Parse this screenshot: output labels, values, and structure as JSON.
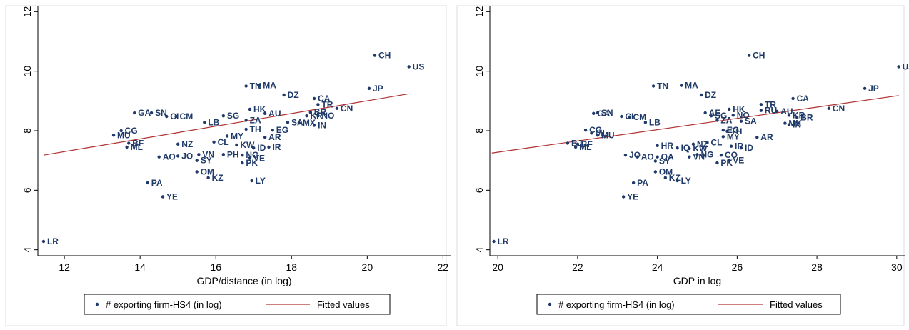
{
  "chart_data": [
    {
      "type": "scatter",
      "xlabel": "GDP/distance (in log)",
      "ylabel": "",
      "xlim": [
        11.3,
        22.2
      ],
      "ylim": [
        3.8,
        12.2
      ],
      "xticks": [
        "12",
        "14",
        "16",
        "18",
        "20",
        "22"
      ],
      "yticks": [
        "4",
        "6",
        "8",
        "10",
        "12"
      ],
      "fit": [
        [
          11.45,
          7.18
        ],
        [
          21.1,
          9.24
        ]
      ],
      "legend": [
        "# exporting firm-HS4 (in log)",
        "Fitted values"
      ],
      "fit_color": "#b03030",
      "marker_color": "#1f3a68",
      "points": [
        {
          "label": "LR",
          "x": 11.45,
          "y": 4.28
        },
        {
          "label": "CH",
          "x": 20.2,
          "y": 10.53
        },
        {
          "label": "US",
          "x": 21.1,
          "y": 10.15
        },
        {
          "label": "JP",
          "x": 20.05,
          "y": 9.42
        },
        {
          "label": "TN",
          "x": 16.8,
          "y": 9.5
        },
        {
          "label": "MA",
          "x": 17.15,
          "y": 9.52
        },
        {
          "label": "DZ",
          "x": 17.8,
          "y": 9.2
        },
        {
          "label": "CA",
          "x": 18.6,
          "y": 9.08
        },
        {
          "label": "TR",
          "x": 18.7,
          "y": 8.88
        },
        {
          "label": "CN",
          "x": 19.2,
          "y": 8.75
        },
        {
          "label": "HK",
          "x": 16.9,
          "y": 8.72
        },
        {
          "label": "AU",
          "x": 17.3,
          "y": 8.58
        },
        {
          "label": "SG",
          "x": 16.2,
          "y": 8.5
        },
        {
          "label": "ZA",
          "x": 16.8,
          "y": 8.35
        },
        {
          "label": "KR",
          "x": 18.4,
          "y": 8.5
        },
        {
          "label": "BR",
          "x": 18.5,
          "y": 8.62
        },
        {
          "label": "NO",
          "x": 18.7,
          "y": 8.5
        },
        {
          "label": "SA",
          "x": 17.9,
          "y": 8.28
        },
        {
          "label": "MX",
          "x": 18.2,
          "y": 8.26
        },
        {
          "label": "IN",
          "x": 18.6,
          "y": 8.18
        },
        {
          "label": "LB",
          "x": 15.7,
          "y": 8.28
        },
        {
          "label": "TH",
          "x": 16.8,
          "y": 8.05
        },
        {
          "label": "EG",
          "x": 17.5,
          "y": 8.02
        },
        {
          "label": "MY",
          "x": 16.3,
          "y": 7.82
        },
        {
          "label": "AR",
          "x": 17.3,
          "y": 7.78
        },
        {
          "label": "CL",
          "x": 15.95,
          "y": 7.62
        },
        {
          "label": "KW",
          "x": 16.55,
          "y": 7.52
        },
        {
          "label": "ID",
          "x": 17.0,
          "y": 7.42
        },
        {
          "label": "IR",
          "x": 17.4,
          "y": 7.45
        },
        {
          "label": "NZ",
          "x": 15.0,
          "y": 7.55
        },
        {
          "label": "VN",
          "x": 15.55,
          "y": 7.2
        },
        {
          "label": "PH",
          "x": 16.2,
          "y": 7.2
        },
        {
          "label": "NG",
          "x": 16.7,
          "y": 7.18
        },
        {
          "label": "VE",
          "x": 16.9,
          "y": 7.08
        },
        {
          "label": "PK",
          "x": 16.7,
          "y": 6.92
        },
        {
          "label": "SY",
          "x": 15.5,
          "y": 7.0
        },
        {
          "label": "AO",
          "x": 14.5,
          "y": 7.12
        },
        {
          "label": "JO",
          "x": 15.0,
          "y": 7.15
        },
        {
          "label": "OM",
          "x": 15.5,
          "y": 6.62
        },
        {
          "label": "KZ",
          "x": 15.8,
          "y": 6.42
        },
        {
          "label": "LY",
          "x": 16.95,
          "y": 6.32
        },
        {
          "label": "PA",
          "x": 14.2,
          "y": 6.25
        },
        {
          "label": "YE",
          "x": 14.6,
          "y": 5.78
        },
        {
          "label": "GA",
          "x": 13.85,
          "y": 8.6
        },
        {
          "label": "SN",
          "x": 14.3,
          "y": 8.6
        },
        {
          "label": "CI",
          "x": 14.7,
          "y": 8.48
        },
        {
          "label": "CM",
          "x": 14.95,
          "y": 8.48
        },
        {
          "label": "CG",
          "x": 13.5,
          "y": 8.0
        },
        {
          "label": "MU",
          "x": 13.3,
          "y": 7.85
        },
        {
          "label": "BF",
          "x": 13.7,
          "y": 7.58
        },
        {
          "label": "ML",
          "x": 13.65,
          "y": 7.45
        }
      ]
    },
    {
      "type": "scatter",
      "xlabel": "GDP in log",
      "ylabel": "",
      "xlim": [
        19.8,
        30.2
      ],
      "ylim": [
        3.8,
        12.2
      ],
      "xticks": [
        "20",
        "22",
        "24",
        "26",
        "28",
        "30"
      ],
      "yticks": [
        "4",
        "6",
        "8",
        "10",
        "12"
      ],
      "fit": [
        [
          19.85,
          7.25
        ],
        [
          30.05,
          9.18
        ]
      ],
      "legend": [
        "# exporting firm-HS4 (in log)",
        "Fitted values"
      ],
      "fit_color": "#b03030",
      "marker_color": "#1f3a68",
      "points": [
        {
          "label": "LR",
          "x": 19.9,
          "y": 4.28
        },
        {
          "label": "CH",
          "x": 26.3,
          "y": 10.53
        },
        {
          "label": "US",
          "x": 30.05,
          "y": 10.15
        },
        {
          "label": "JP",
          "x": 29.2,
          "y": 9.42
        },
        {
          "label": "TN",
          "x": 23.9,
          "y": 9.5
        },
        {
          "label": "MA",
          "x": 24.6,
          "y": 9.52
        },
        {
          "label": "DZ",
          "x": 25.1,
          "y": 9.2
        },
        {
          "label": "CA",
          "x": 27.4,
          "y": 9.08
        },
        {
          "label": "TR",
          "x": 26.6,
          "y": 8.88
        },
        {
          "label": "CN",
          "x": 28.3,
          "y": 8.75
        },
        {
          "label": "HK",
          "x": 25.8,
          "y": 8.72
        },
        {
          "label": "RU",
          "x": 26.6,
          "y": 8.68
        },
        {
          "label": "AU",
          "x": 27.0,
          "y": 8.65
        },
        {
          "label": "AE",
          "x": 25.2,
          "y": 8.6
        },
        {
          "label": "NO",
          "x": 25.9,
          "y": 8.52
        },
        {
          "label": "SG",
          "x": 25.35,
          "y": 8.5
        },
        {
          "label": "KR",
          "x": 27.3,
          "y": 8.52
        },
        {
          "label": "BR",
          "x": 27.5,
          "y": 8.45
        },
        {
          "label": "ZA",
          "x": 25.5,
          "y": 8.35
        },
        {
          "label": "SA",
          "x": 26.1,
          "y": 8.32
        },
        {
          "label": "MX",
          "x": 27.2,
          "y": 8.25
        },
        {
          "label": "IN",
          "x": 27.3,
          "y": 8.2
        },
        {
          "label": "LB",
          "x": 23.7,
          "y": 8.28
        },
        {
          "label": "EG",
          "x": 25.65,
          "y": 8.02
        },
        {
          "label": "TH",
          "x": 25.75,
          "y": 7.98
        },
        {
          "label": "MY",
          "x": 25.65,
          "y": 7.8
        },
        {
          "label": "AR",
          "x": 26.5,
          "y": 7.78
        },
        {
          "label": "CL",
          "x": 25.25,
          "y": 7.6
        },
        {
          "label": "HR",
          "x": 24.0,
          "y": 7.5
        },
        {
          "label": "NZ",
          "x": 24.9,
          "y": 7.55
        },
        {
          "label": "IR",
          "x": 25.85,
          "y": 7.48
        },
        {
          "label": "ID",
          "x": 26.1,
          "y": 7.42
        },
        {
          "label": "IQ",
          "x": 24.5,
          "y": 7.42
        },
        {
          "label": "KW",
          "x": 24.8,
          "y": 7.4
        },
        {
          "label": "NG",
          "x": 25.0,
          "y": 7.2
        },
        {
          "label": "VN",
          "x": 24.8,
          "y": 7.12
        },
        {
          "label": "CO",
          "x": 25.6,
          "y": 7.18
        },
        {
          "label": "VE",
          "x": 25.8,
          "y": 7.0
        },
        {
          "label": "PK",
          "x": 25.5,
          "y": 6.92
        },
        {
          "label": "JO",
          "x": 23.2,
          "y": 7.18
        },
        {
          "label": "AO",
          "x": 23.5,
          "y": 7.12
        },
        {
          "label": "QA",
          "x": 24.0,
          "y": 7.12
        },
        {
          "label": "SY",
          "x": 23.95,
          "y": 6.98
        },
        {
          "label": "OM",
          "x": 23.95,
          "y": 6.62
        },
        {
          "label": "KZ",
          "x": 24.2,
          "y": 6.42
        },
        {
          "label": "LY",
          "x": 24.5,
          "y": 6.32
        },
        {
          "label": "PA",
          "x": 23.4,
          "y": 6.25
        },
        {
          "label": "YE",
          "x": 23.15,
          "y": 5.78
        },
        {
          "label": "SN",
          "x": 22.5,
          "y": 8.6
        },
        {
          "label": "GA",
          "x": 22.4,
          "y": 8.58
        },
        {
          "label": "CI",
          "x": 23.1,
          "y": 8.48
        },
        {
          "label": "CM",
          "x": 23.3,
          "y": 8.46
        },
        {
          "label": "CG",
          "x": 22.2,
          "y": 8.02
        },
        {
          "label": "ML",
          "x": 22.35,
          "y": 7.92
        },
        {
          "label": "MU",
          "x": 22.5,
          "y": 7.85
        },
        {
          "label": "BJ",
          "x": 21.75,
          "y": 7.58
        },
        {
          "label": "BF",
          "x": 22.0,
          "y": 7.55
        },
        {
          "label": "ML",
          "x": 21.95,
          "y": 7.45
        }
      ]
    }
  ]
}
